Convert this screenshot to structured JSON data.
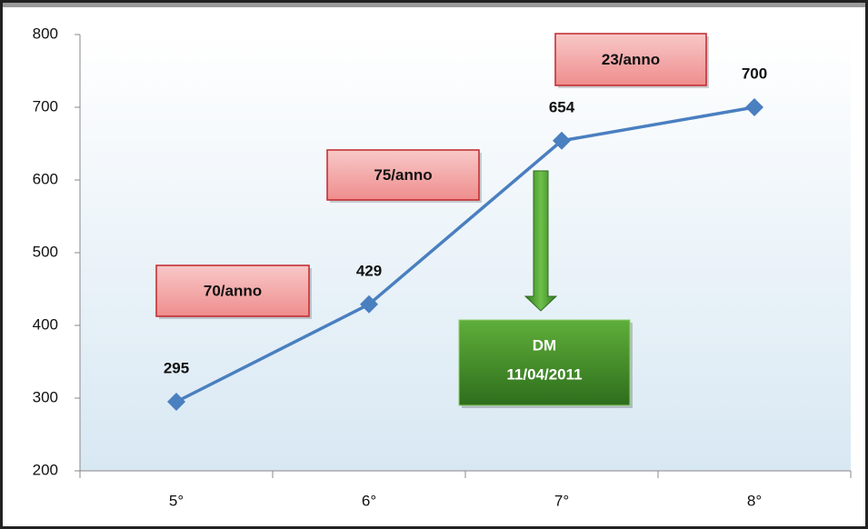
{
  "chart_data": {
    "type": "line",
    "categories": [
      "5°",
      "6°",
      "7°",
      "8°"
    ],
    "series": [
      {
        "name": null,
        "color": "#4a7fc0",
        "values": [
          295,
          429,
          654,
          700
        ]
      }
    ],
    "ylim": [
      200,
      800
    ],
    "yticks": [
      200,
      300,
      400,
      500,
      600,
      700,
      800
    ],
    "grid": false,
    "annotations": [
      "70/anno",
      "75/anno",
      "23/anno"
    ],
    "note": [
      "DM",
      "11/04/2011"
    ]
  }
}
